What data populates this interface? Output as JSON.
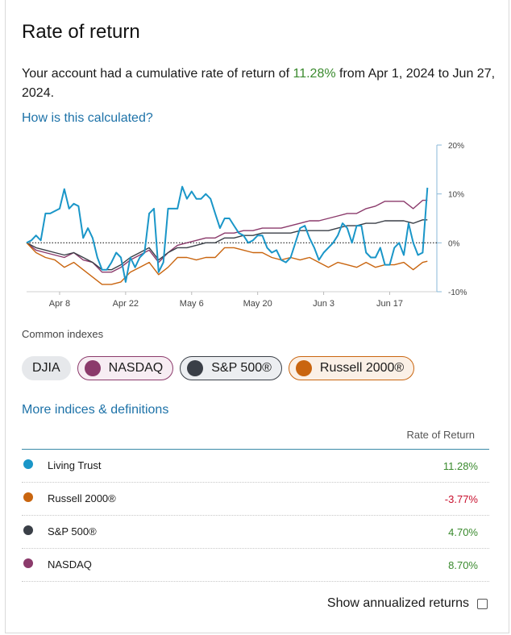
{
  "title": "Rate of return",
  "summary": {
    "prefix": "Your account had a cumulative rate of return of ",
    "pct": "11.28%",
    "suffix": " from Apr 1, 2024 to Jun 27, 2024."
  },
  "how_link": "How is this calculated?",
  "chart_data": {
    "type": "line",
    "title": "",
    "xlabel": "",
    "ylabel": "",
    "ylim": [
      -10,
      20
    ],
    "y_ticks": [
      "20%",
      "10%",
      "0%",
      "-10%"
    ],
    "y_tick_values": [
      20,
      10,
      0,
      -10
    ],
    "x_ticks": [
      "Apr 8",
      "Apr 22",
      "May 6",
      "May 20",
      "Jun 3",
      "Jun 17"
    ],
    "x_tick_days": [
      7,
      21,
      35,
      49,
      63,
      77
    ],
    "x_range_days": [
      0,
      87
    ],
    "baseline": 0,
    "series": [
      {
        "name": "Living Trust",
        "color": "#1a96c8",
        "points": [
          [
            0,
            0
          ],
          [
            1,
            0.5
          ],
          [
            2,
            1.5
          ],
          [
            3,
            0.5
          ],
          [
            4,
            6
          ],
          [
            5,
            6
          ],
          [
            6,
            6.5
          ],
          [
            7,
            7
          ],
          [
            8,
            11
          ],
          [
            9,
            7
          ],
          [
            10,
            8
          ],
          [
            11,
            7.5
          ],
          [
            12,
            1
          ],
          [
            13,
            3
          ],
          [
            14,
            1
          ],
          [
            15,
            -3
          ],
          [
            16,
            -5.5
          ],
          [
            17,
            -5.5
          ],
          [
            18,
            -4
          ],
          [
            19,
            -2
          ],
          [
            20,
            -3
          ],
          [
            21,
            -8
          ],
          [
            22,
            -3
          ],
          [
            23,
            -5
          ],
          [
            24,
            -3
          ],
          [
            25,
            -2
          ],
          [
            26,
            6
          ],
          [
            27,
            7
          ],
          [
            28,
            -6
          ],
          [
            29,
            -4
          ],
          [
            30,
            7
          ],
          [
            31,
            7
          ],
          [
            32,
            7
          ],
          [
            33,
            11.5
          ],
          [
            34,
            9
          ],
          [
            35,
            10.5
          ],
          [
            36,
            9
          ],
          [
            37,
            9
          ],
          [
            38,
            10
          ],
          [
            39,
            9
          ],
          [
            40,
            6
          ],
          [
            41,
            3
          ],
          [
            42,
            5
          ],
          [
            43,
            5
          ],
          [
            44,
            3.5
          ],
          [
            45,
            2
          ],
          [
            46,
            1.5
          ],
          [
            47,
            0
          ],
          [
            48,
            0.5
          ],
          [
            49,
            1.5
          ],
          [
            50,
            1.5
          ],
          [
            51,
            -1
          ],
          [
            52,
            -2
          ],
          [
            53,
            -1.5
          ],
          [
            54,
            -3.5
          ],
          [
            55,
            -4
          ],
          [
            56,
            -3
          ],
          [
            57,
            0
          ],
          [
            58,
            3
          ],
          [
            59,
            3.5
          ],
          [
            60,
            1
          ],
          [
            61,
            -1
          ],
          [
            62,
            -3.5
          ],
          [
            63,
            -2
          ],
          [
            64,
            -1
          ],
          [
            65,
            0
          ],
          [
            66,
            1.5
          ],
          [
            67,
            4
          ],
          [
            68,
            3
          ],
          [
            69,
            0
          ],
          [
            70,
            3.5
          ],
          [
            71,
            3.5
          ],
          [
            72,
            -2
          ],
          [
            73,
            -3
          ],
          [
            74,
            -3
          ],
          [
            75,
            -1
          ],
          [
            76,
            -4.5
          ],
          [
            77,
            -4.5
          ],
          [
            78,
            -1
          ],
          [
            79,
            0
          ],
          [
            80,
            -2.5
          ],
          [
            81,
            4
          ],
          [
            82,
            0
          ],
          [
            83,
            -2.5
          ],
          [
            84,
            -2
          ],
          [
            85,
            11.28
          ]
        ]
      },
      {
        "name": "Russell 2000®",
        "color": "#c9650f",
        "points": [
          [
            0,
            0
          ],
          [
            2,
            -2
          ],
          [
            4,
            -3
          ],
          [
            6,
            -3.5
          ],
          [
            8,
            -5
          ],
          [
            10,
            -4
          ],
          [
            12,
            -5.5
          ],
          [
            14,
            -7
          ],
          [
            16,
            -8.5
          ],
          [
            18,
            -8.5
          ],
          [
            20,
            -8
          ],
          [
            22,
            -6
          ],
          [
            24,
            -5
          ],
          [
            26,
            -4
          ],
          [
            28,
            -6.5
          ],
          [
            30,
            -5
          ],
          [
            32,
            -3
          ],
          [
            34,
            -3
          ],
          [
            36,
            -3.5
          ],
          [
            38,
            -3
          ],
          [
            40,
            -3
          ],
          [
            42,
            -1
          ],
          [
            44,
            -1
          ],
          [
            46,
            -1.5
          ],
          [
            48,
            -2
          ],
          [
            50,
            -2
          ],
          [
            52,
            -3
          ],
          [
            54,
            -3.5
          ],
          [
            56,
            -3
          ],
          [
            58,
            -3.5
          ],
          [
            60,
            -3
          ],
          [
            62,
            -4
          ],
          [
            64,
            -5
          ],
          [
            66,
            -4
          ],
          [
            68,
            -4.5
          ],
          [
            70,
            -5
          ],
          [
            72,
            -4
          ],
          [
            74,
            -5
          ],
          [
            76,
            -4.5
          ],
          [
            78,
            -4.5
          ],
          [
            80,
            -4
          ],
          [
            82,
            -5.5
          ],
          [
            84,
            -4
          ],
          [
            85,
            -3.77
          ]
        ]
      },
      {
        "name": "S&P 500®",
        "color": "#3a3f47",
        "points": [
          [
            0,
            0
          ],
          [
            2,
            -1
          ],
          [
            4,
            -1.5
          ],
          [
            6,
            -2
          ],
          [
            8,
            -2.5
          ],
          [
            10,
            -2
          ],
          [
            12,
            -3
          ],
          [
            14,
            -4
          ],
          [
            16,
            -5.5
          ],
          [
            18,
            -5.5
          ],
          [
            20,
            -4.5
          ],
          [
            22,
            -3
          ],
          [
            24,
            -2
          ],
          [
            26,
            -1
          ],
          [
            28,
            -3.5
          ],
          [
            30,
            -2
          ],
          [
            32,
            -1
          ],
          [
            34,
            -1
          ],
          [
            36,
            -0.5
          ],
          [
            38,
            0
          ],
          [
            40,
            0
          ],
          [
            42,
            1
          ],
          [
            44,
            1
          ],
          [
            46,
            1.5
          ],
          [
            48,
            1.5
          ],
          [
            50,
            2
          ],
          [
            52,
            2
          ],
          [
            54,
            2
          ],
          [
            56,
            2
          ],
          [
            58,
            2.5
          ],
          [
            60,
            2.5
          ],
          [
            62,
            2.5
          ],
          [
            64,
            2.5
          ],
          [
            66,
            3
          ],
          [
            68,
            3.5
          ],
          [
            70,
            3.5
          ],
          [
            72,
            4
          ],
          [
            74,
            4
          ],
          [
            76,
            4.5
          ],
          [
            78,
            4.5
          ],
          [
            80,
            4.5
          ],
          [
            82,
            4
          ],
          [
            84,
            4.7
          ],
          [
            85,
            4.7
          ]
        ]
      },
      {
        "name": "NASDAQ",
        "color": "#8b3a6b",
        "points": [
          [
            0,
            0
          ],
          [
            2,
            -1.5
          ],
          [
            4,
            -2
          ],
          [
            6,
            -2.5
          ],
          [
            8,
            -3
          ],
          [
            10,
            -2
          ],
          [
            12,
            -3.5
          ],
          [
            14,
            -4
          ],
          [
            16,
            -6
          ],
          [
            18,
            -6
          ],
          [
            20,
            -5
          ],
          [
            22,
            -3.5
          ],
          [
            24,
            -2.5
          ],
          [
            26,
            -1.5
          ],
          [
            28,
            -4
          ],
          [
            30,
            -2
          ],
          [
            32,
            -0.5
          ],
          [
            34,
            0
          ],
          [
            36,
            0.5
          ],
          [
            38,
            1
          ],
          [
            40,
            1
          ],
          [
            42,
            2
          ],
          [
            44,
            2
          ],
          [
            46,
            2.5
          ],
          [
            48,
            2.5
          ],
          [
            50,
            3
          ],
          [
            52,
            3
          ],
          [
            54,
            3
          ],
          [
            56,
            3.5
          ],
          [
            58,
            4
          ],
          [
            60,
            4.5
          ],
          [
            62,
            4.5
          ],
          [
            64,
            5
          ],
          [
            66,
            5.5
          ],
          [
            68,
            6
          ],
          [
            70,
            6
          ],
          [
            72,
            7
          ],
          [
            74,
            7.5
          ],
          [
            76,
            8.5
          ],
          [
            78,
            8.5
          ],
          [
            80,
            8.5
          ],
          [
            82,
            7
          ],
          [
            84,
            8.7
          ],
          [
            85,
            8.7
          ]
        ]
      }
    ]
  },
  "common_indexes_label": "Common indexes",
  "chips": {
    "djia": "DJIA",
    "nasdaq": "NASDAQ",
    "sp": "S&P 500®",
    "russell": "Russell 2000®"
  },
  "colors": {
    "living_trust": "#1a96c8",
    "russell": "#c9650f",
    "sp": "#3a3f47",
    "nasdaq": "#8b3a6b",
    "positive": "#3a8a2e",
    "negative": "#c8102e",
    "link": "#1d72a8"
  },
  "more_link": "More indices & definitions",
  "table": {
    "header": "Rate of Return",
    "rows": [
      {
        "name": "Living Trust",
        "value": "11.28%"
      },
      {
        "name": "Russell 2000®",
        "value": "-3.77%"
      },
      {
        "name": "S&P 500®",
        "value": "4.70%"
      },
      {
        "name": "NASDAQ",
        "value": "8.70%"
      }
    ]
  },
  "annualized_label": "Show annualized returns"
}
